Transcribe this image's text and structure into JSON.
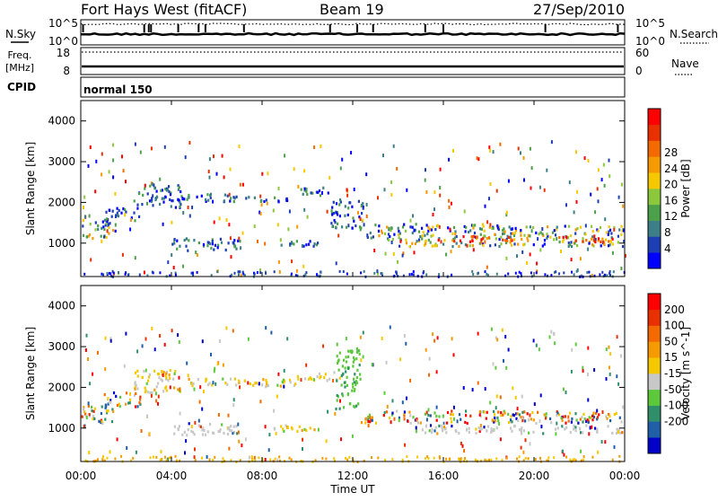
{
  "header": {
    "station": "Fort Hays West (fitACF)",
    "beam": "Beam 19",
    "date": "27/Sep/2010"
  },
  "noise_panel": {
    "left_label": "N.Sky",
    "right_label": "N.Search",
    "left_ticks": [
      "10^5",
      "10^0"
    ],
    "right_ticks": [
      "10^5",
      "10^0"
    ]
  },
  "freq_panel": {
    "left_label_1": "Freq.",
    "left_label_2": "[MHz]",
    "right_label": "Nave",
    "left_ticks": [
      "18",
      "8"
    ],
    "right_ticks": [
      "60",
      "0"
    ]
  },
  "cpid_panel": {
    "label": "CPID",
    "mode": "normal 150"
  },
  "x_axis": {
    "label": "Time UT",
    "ticks": [
      "00:00",
      "04:00",
      "08:00",
      "12:00",
      "16:00",
      "20:00",
      "00:00"
    ]
  },
  "chart_data": [
    {
      "type": "heatmap",
      "name": "power",
      "ylabel": "Slant Range [km]",
      "yticks": [
        "1000",
        "2000",
        "3000",
        "4000"
      ],
      "xlim": [
        0,
        24
      ],
      "ylim": [
        180,
        4500
      ],
      "colorbar": {
        "label": "Power [dB]",
        "ticks": [
          "4",
          "8",
          "12",
          "16",
          "20",
          "24",
          "28"
        ],
        "colors": [
          "#0000ff",
          "#1e3fb4",
          "#3d7f87",
          "#4da04a",
          "#8cc83c",
          "#f5c800",
          "#f59a00",
          "#f26a00",
          "#e83000",
          "#ff0000"
        ]
      },
      "bands": [
        {
          "start": 0.0,
          "end": 1.5,
          "r0": 1150,
          "r1": 1600,
          "level": "mid"
        },
        {
          "start": 1.0,
          "end": 2.6,
          "r0": 1550,
          "r1": 1900,
          "level": "low"
        },
        {
          "start": 2.3,
          "end": 4.5,
          "r0": 1900,
          "r1": 2450,
          "level": "low"
        },
        {
          "start": 4.5,
          "end": 6.5,
          "r0": 2050,
          "r1": 2250,
          "level": "low"
        },
        {
          "start": 6.5,
          "end": 9.5,
          "r0": 2050,
          "r1": 2200,
          "level": "low"
        },
        {
          "start": 9.5,
          "end": 11.0,
          "r0": 2200,
          "r1": 2400,
          "level": "low"
        },
        {
          "start": 4.0,
          "end": 7.0,
          "r0": 850,
          "r1": 1150,
          "level": "low"
        },
        {
          "start": 8.3,
          "end": 10.5,
          "r0": 950,
          "r1": 1100,
          "level": "low"
        },
        {
          "start": 11.0,
          "end": 12.5,
          "r0": 1400,
          "r1": 2100,
          "level": "low"
        },
        {
          "start": 12.5,
          "end": 14.0,
          "r0": 1100,
          "r1": 1500,
          "level": "mid"
        },
        {
          "start": 14.0,
          "end": 18.5,
          "r0": 950,
          "r1": 1500,
          "level": "mid"
        },
        {
          "start": 18.5,
          "end": 24.0,
          "r0": 950,
          "r1": 1450,
          "level": "mid"
        },
        {
          "start": 15.5,
          "end": 19.0,
          "r0": 1050,
          "r1": 1200,
          "level": "high"
        },
        {
          "start": 21.0,
          "end": 23.5,
          "r0": 1050,
          "r1": 1200,
          "level": "high"
        }
      ]
    },
    {
      "type": "heatmap",
      "name": "velocity",
      "ylabel": "Slant Range [km]",
      "yticks": [
        "1000",
        "2000",
        "3000",
        "4000"
      ],
      "xlim": [
        0,
        24
      ],
      "ylim": [
        180,
        4500
      ],
      "colorbar": {
        "label": "Velocity [m s^-1]",
        "ticks": [
          "200",
          "100",
          "50",
          "15",
          "-15",
          "-50",
          "-100",
          "-200"
        ],
        "colors": [
          "#0000c8",
          "#1f5fa8",
          "#2f8f6a",
          "#5cc83c",
          "#c8c8c8",
          "#f5c800",
          "#f59a00",
          "#f26a00",
          "#e83000",
          "#ff0000"
        ]
      },
      "bands": [
        {
          "start": 0.0,
          "end": 1.5,
          "r0": 1150,
          "r1": 1600,
          "level": "mixed"
        },
        {
          "start": 1.0,
          "end": 2.6,
          "r0": 1550,
          "r1": 1900,
          "level": "mixed"
        },
        {
          "start": 2.3,
          "end": 4.5,
          "r0": 1900,
          "r1": 2450,
          "level": "slow"
        },
        {
          "start": 4.5,
          "end": 9.5,
          "r0": 2050,
          "r1": 2250,
          "level": "slow"
        },
        {
          "start": 9.5,
          "end": 11.5,
          "r0": 2200,
          "r1": 2400,
          "level": "slow"
        },
        {
          "start": 4.0,
          "end": 7.0,
          "r0": 850,
          "r1": 1150,
          "level": "ground"
        },
        {
          "start": 8.3,
          "end": 10.5,
          "r0": 950,
          "r1": 1100,
          "level": "slow"
        },
        {
          "start": 11.2,
          "end": 12.3,
          "r0": 1500,
          "r1": 3000,
          "level": "toward"
        },
        {
          "start": 12.3,
          "end": 24.0,
          "r0": 1150,
          "r1": 1450,
          "level": "mixed"
        },
        {
          "start": 15.0,
          "end": 24.0,
          "r0": 900,
          "r1": 1100,
          "level": "ground"
        }
      ]
    }
  ]
}
